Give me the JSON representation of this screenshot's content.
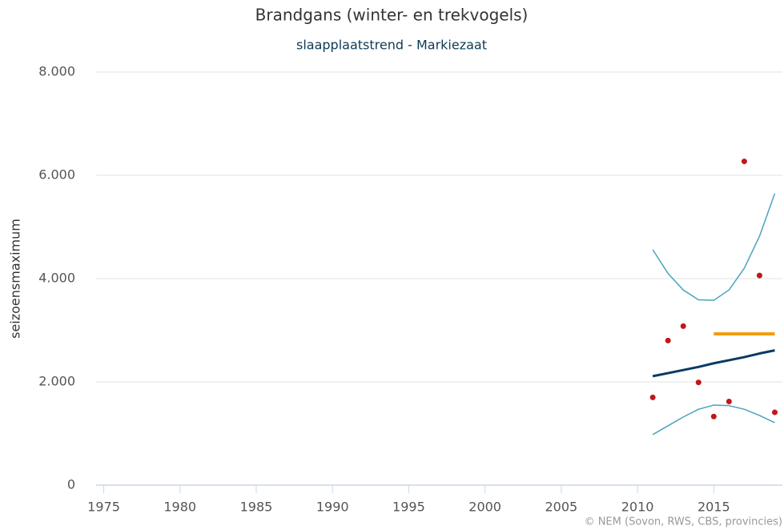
{
  "chart_data": {
    "type": "line",
    "title": "Brandgans (winter- en trekvogels)",
    "subtitle": "slaapplaatstrend - Markiezaat",
    "y_label": "seizoensmaximum",
    "credit": "© NEM (Sovon, RWS, CBS, provincies)",
    "x": [
      2011,
      2012,
      2013,
      2014,
      2015,
      2016,
      2017,
      2018,
      2019
    ],
    "xlim": [
      1974.5,
      2019.5
    ],
    "xticks": [
      1975,
      1980,
      1985,
      1990,
      1995,
      2000,
      2005,
      2010,
      2015
    ],
    "ylim": [
      0,
      8000
    ],
    "yticks": [
      0,
      {
        "value": 2000,
        "label": "2.000"
      },
      {
        "value": 4000,
        "label": "4.000"
      },
      {
        "value": 6000,
        "label": "6.000"
      },
      {
        "value": 8000,
        "label": "8.000"
      }
    ],
    "grid": true,
    "series": [
      {
        "mode": "line",
        "color": "#4aa3c0",
        "width": 1.5,
        "values": [
          4560,
          4100,
          3780,
          3590,
          3580,
          3780,
          4200,
          4820,
          5650
        ]
      },
      {
        "mode": "line",
        "color": "#4aa3c0",
        "width": 1.5,
        "values": [
          980,
          1150,
          1320,
          1470,
          1550,
          1540,
          1470,
          1350,
          1210
        ]
      },
      {
        "mode": "line",
        "color": "#0a3a63",
        "width": 3,
        "values": [
          2110,
          2170,
          2230,
          2290,
          2360,
          2420,
          2480,
          2550,
          2610
        ]
      },
      {
        "mode": "line",
        "color": "#f39c12",
        "width": 4,
        "values": [
          null,
          null,
          null,
          null,
          2930,
          2930,
          2930,
          2930,
          2930
        ]
      },
      {
        "mode": "markers",
        "color": "#c0171c",
        "values": [
          1700,
          2800,
          3080,
          1990,
          1330,
          1620,
          6270,
          4060,
          1410
        ]
      }
    ]
  }
}
